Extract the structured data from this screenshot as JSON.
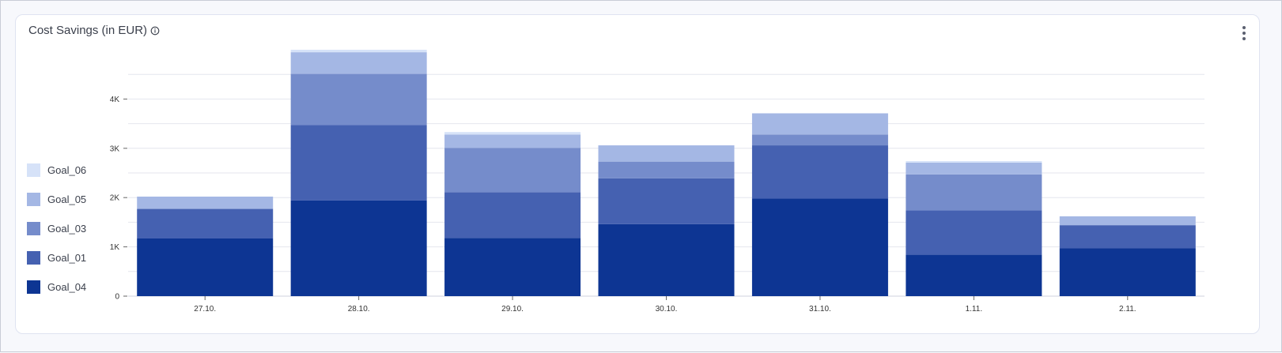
{
  "card": {
    "title": "Cost Savings (in EUR)"
  },
  "icons": {
    "info": "info-icon",
    "menu": "kebab-menu-icon"
  },
  "colors": {
    "Goal_04": "#0d3593",
    "Goal_01": "#4561b1",
    "Goal_03": "#758ccb",
    "Goal_05": "#a4b7e4",
    "Goal_06": "#d6e2f8",
    "grid": "#e4e6ee"
  },
  "legend": [
    {
      "label": "Goal_06"
    },
    {
      "label": "Goal_05"
    },
    {
      "label": "Goal_03"
    },
    {
      "label": "Goal_01"
    },
    {
      "label": "Goal_04"
    }
  ],
  "chart_data": {
    "type": "bar",
    "stacked": true,
    "title": "Cost Savings (in EUR)",
    "xlabel": "",
    "ylabel": "",
    "ylim": [
      0,
      5000
    ],
    "grid": true,
    "legend_position": "left",
    "categories": [
      "27.10.",
      "28.10.",
      "29.10.",
      "30.10.",
      "31.10.",
      "1.11.",
      "2.11."
    ],
    "yticks": [
      {
        "value": 0,
        "label": "0"
      },
      {
        "value": 1000,
        "label": "1K"
      },
      {
        "value": 2000,
        "label": "2K"
      },
      {
        "value": 3000,
        "label": "3K"
      },
      {
        "value": 4000,
        "label": "4K"
      }
    ],
    "series": [
      {
        "name": "Goal_04",
        "values": [
          1170,
          1940,
          1180,
          1460,
          1980,
          840,
          970
        ]
      },
      {
        "name": "Goal_01",
        "values": [
          600,
          1530,
          930,
          930,
          1080,
          900,
          470
        ]
      },
      {
        "name": "Goal_03",
        "values": [
          0,
          1040,
          900,
          340,
          220,
          730,
          0
        ]
      },
      {
        "name": "Goal_05",
        "values": [
          250,
          440,
          270,
          330,
          430,
          240,
          180
        ]
      },
      {
        "name": "Goal_06",
        "values": [
          0,
          50,
          50,
          0,
          0,
          30,
          0
        ]
      }
    ]
  }
}
